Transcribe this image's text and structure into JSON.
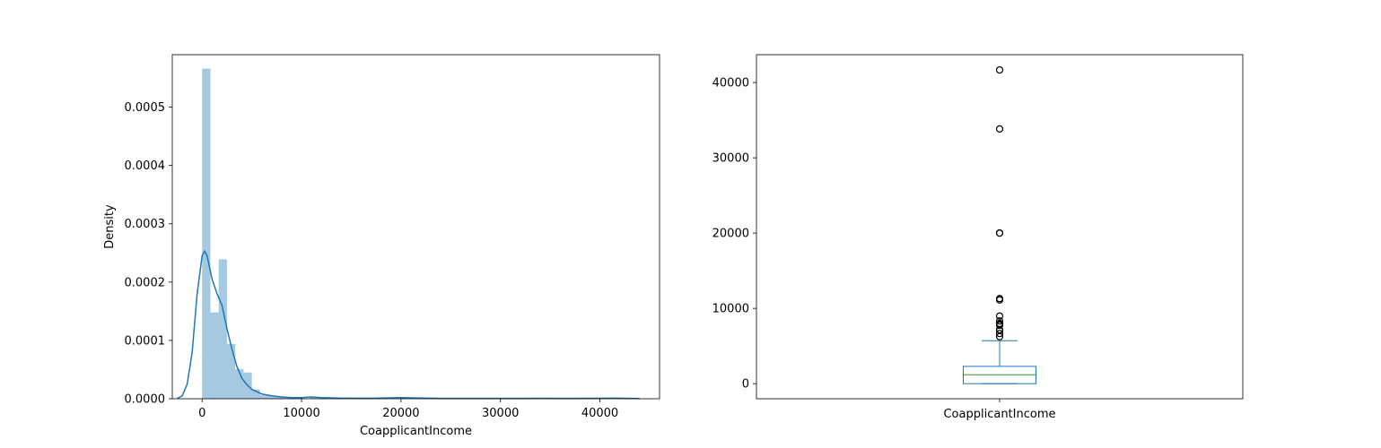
{
  "chart_data": [
    {
      "type": "histogram",
      "xlabel": "CoapplicantIncome",
      "ylabel": "Density",
      "xlim": [
        -3000,
        46000
      ],
      "ylim": [
        0,
        0.00059
      ],
      "xticks": [
        0,
        10000,
        20000,
        30000,
        40000
      ],
      "yticks": [
        0,
        0.0001,
        0.0002,
        0.0003,
        0.0004,
        0.0005
      ],
      "ytick_labels": [
        "0.0000",
        "0.0001",
        "0.0002",
        "0.0003",
        "0.0004",
        "0.0005"
      ],
      "bin_width": 833,
      "bins": [
        {
          "x0": 0,
          "density": 0.000566
        },
        {
          "x0": 833,
          "density": 0.000148
        },
        {
          "x0": 1666,
          "density": 0.000239
        },
        {
          "x0": 2499,
          "density": 9.4e-05
        },
        {
          "x0": 3332,
          "density": 5.1e-05
        },
        {
          "x0": 4165,
          "density": 4.5e-05
        },
        {
          "x0": 4998,
          "density": 1.6e-05
        },
        {
          "x0": 5831,
          "density": 6e-06
        },
        {
          "x0": 6664,
          "density": 5e-06
        },
        {
          "x0": 7497,
          "density": 3e-06
        },
        {
          "x0": 8330,
          "density": 2e-06
        },
        {
          "x0": 10829,
          "density": 2e-06
        },
        {
          "x0": 19992,
          "density": 1.5e-06
        },
        {
          "x0": 33320,
          "density": 8e-07
        },
        {
          "x0": 40817,
          "density": 8e-07
        }
      ],
      "kde": {
        "x": [
          -2500,
          -2000,
          -1500,
          -1000,
          -500,
          0,
          250,
          500,
          1000,
          1500,
          2000,
          2500,
          3000,
          3500,
          4000,
          4500,
          5000,
          6000,
          7000,
          8000,
          9000,
          10000,
          11000,
          12000,
          14000,
          17000,
          19000,
          20000,
          21000,
          24000,
          28000,
          32000,
          34000,
          36000,
          40000,
          41600,
          43000,
          44000
        ],
        "y": [
          5e-07,
          5e-06,
          2.5e-05,
          8e-05,
          0.00018,
          0.000245,
          0.000253,
          0.000245,
          0.000205,
          0.00018,
          0.00016,
          0.00012,
          8.5e-05,
          5.5e-05,
          3.5e-05,
          2.4e-05,
          1.6e-05,
          8e-06,
          5e-06,
          3e-06,
          2e-06,
          2e-06,
          3e-06,
          2e-06,
          1e-06,
          8e-07,
          1.5e-06,
          2e-06,
          1.5e-06,
          6e-07,
          5e-07,
          6e-07,
          8e-07,
          6e-07,
          8e-07,
          9e-07,
          5e-07,
          1e-07
        ]
      },
      "colors": {
        "bars": "#1f77b4",
        "kde": "#1f77b4"
      }
    },
    {
      "type": "box",
      "xlabel": "CoapplicantIncome",
      "category": "CoapplicantIncome",
      "ylim": [
        -2000,
        43700
      ],
      "yticks": [
        0,
        10000,
        20000,
        30000,
        40000
      ],
      "stats": {
        "whislo": 0,
        "q1": 0,
        "med": 1189,
        "q3": 2297,
        "whishi": 5701
      },
      "fliers": [
        6250,
        6666,
        7101,
        7166,
        7750,
        7873,
        8000,
        8333,
        8980,
        11300,
        11117,
        20000,
        20000,
        33837,
        41667
      ],
      "colors": {
        "box": "#1f77b4",
        "median": "#2ca02c",
        "whisker": "#1f77b4",
        "flier": "#000000"
      }
    }
  ]
}
